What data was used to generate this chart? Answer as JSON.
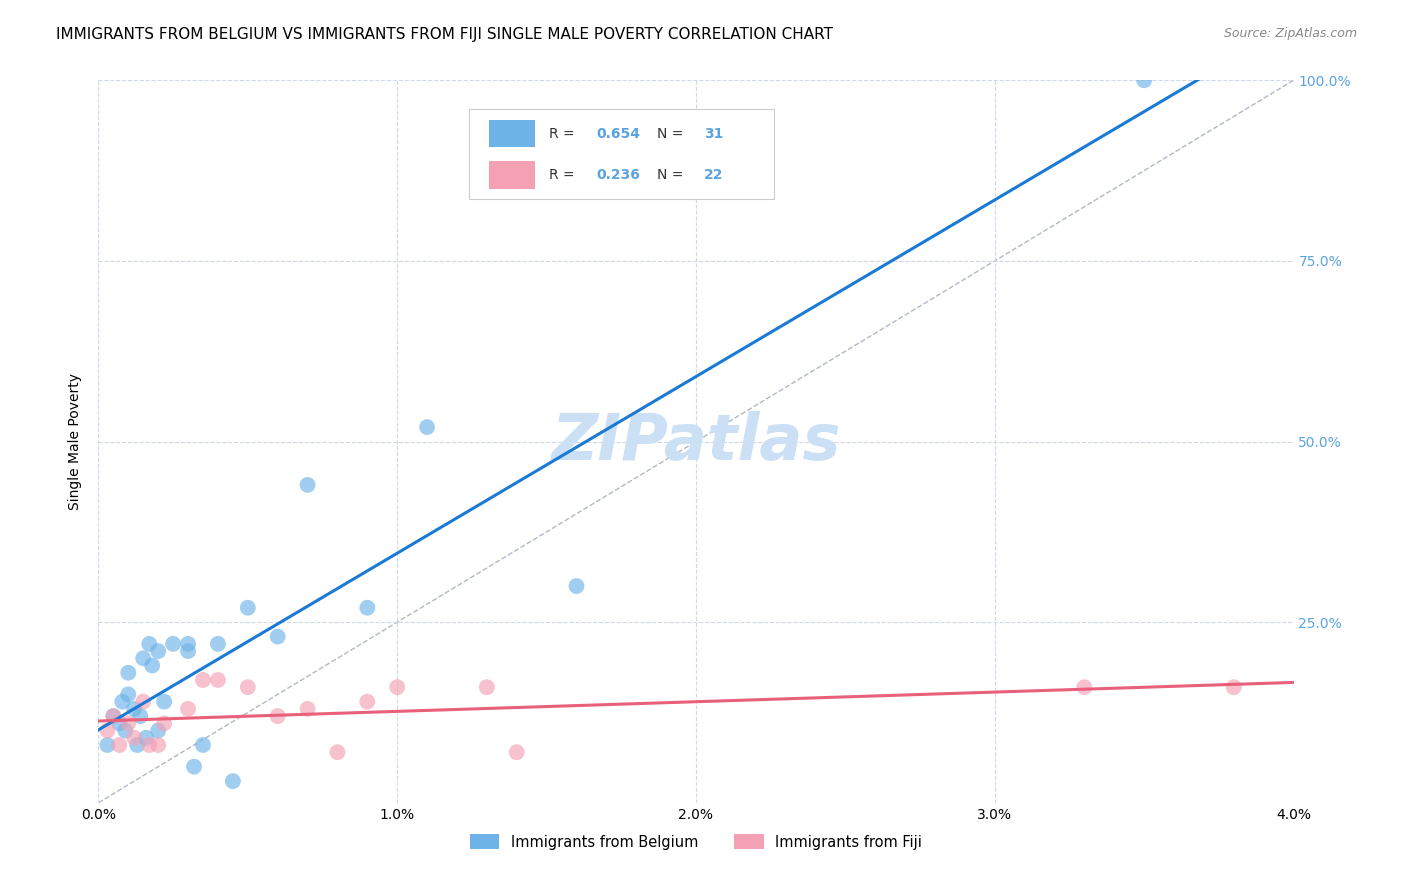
{
  "title": "IMMIGRANTS FROM BELGIUM VS IMMIGRANTS FROM FIJI SINGLE MALE POVERTY CORRELATION CHART",
  "source": "Source: ZipAtlas.com",
  "ylabel": "Single Male Poverty",
  "legend_belgium": "Immigrants from Belgium",
  "legend_fiji": "Immigrants from Fiji",
  "belgium_r": "0.654",
  "belgium_n": "31",
  "fiji_r": "0.236",
  "fiji_n": "22",
  "x_min": 0.0,
  "x_max": 0.04,
  "y_min": 0.0,
  "y_max": 1.0,
  "x_ticks": [
    0.0,
    0.01,
    0.02,
    0.03,
    0.04
  ],
  "x_tick_labels": [
    "0.0%",
    "1.0%",
    "2.0%",
    "3.0%",
    "4.0%"
  ],
  "y_ticks": [
    0.0,
    0.25,
    0.5,
    0.75,
    1.0
  ],
  "y_tick_labels": [
    "",
    "25.0%",
    "50.0%",
    "75.0%",
    "100.0%"
  ],
  "belgium_color": "#6eb3e8",
  "fiji_color": "#f4a0b5",
  "belgium_line_color": "#1a7ad4",
  "fiji_line_color": "#e8607a",
  "diagonal_color": "#b0b8c8",
  "background_color": "#ffffff",
  "watermark": "ZIPatlas",
  "belgium_x": [
    0.0003,
    0.0005,
    0.0007,
    0.0008,
    0.0009,
    0.001,
    0.001,
    0.0012,
    0.0013,
    0.0014,
    0.0015,
    0.0016,
    0.0017,
    0.0018,
    0.002,
    0.002,
    0.0022,
    0.0025,
    0.003,
    0.003,
    0.0032,
    0.0035,
    0.004,
    0.0045,
    0.005,
    0.006,
    0.007,
    0.009,
    0.011,
    0.016,
    0.035
  ],
  "belgium_y": [
    0.08,
    0.12,
    0.11,
    0.14,
    0.1,
    0.15,
    0.18,
    0.13,
    0.08,
    0.12,
    0.2,
    0.09,
    0.22,
    0.19,
    0.1,
    0.21,
    0.14,
    0.22,
    0.21,
    0.22,
    0.05,
    0.08,
    0.22,
    0.03,
    0.27,
    0.23,
    0.44,
    0.27,
    0.52,
    0.3,
    1.0
  ],
  "fiji_x": [
    0.0003,
    0.0005,
    0.0007,
    0.001,
    0.0012,
    0.0015,
    0.0017,
    0.002,
    0.0022,
    0.003,
    0.0035,
    0.004,
    0.005,
    0.006,
    0.007,
    0.008,
    0.009,
    0.01,
    0.013,
    0.014,
    0.033,
    0.038
  ],
  "fiji_y": [
    0.1,
    0.12,
    0.08,
    0.11,
    0.09,
    0.14,
    0.08,
    0.08,
    0.11,
    0.13,
    0.17,
    0.17,
    0.16,
    0.12,
    0.13,
    0.07,
    0.14,
    0.16,
    0.16,
    0.07,
    0.16,
    0.16
  ],
  "title_fontsize": 11,
  "source_fontsize": 9,
  "tick_label_fontsize": 10,
  "ylabel_fontsize": 10,
  "legend_fontsize": 10,
  "watermark_fontsize": 46,
  "watermark_color": "#cce0f5",
  "right_tick_color": "#5ba3e0",
  "scatter_size": 130
}
